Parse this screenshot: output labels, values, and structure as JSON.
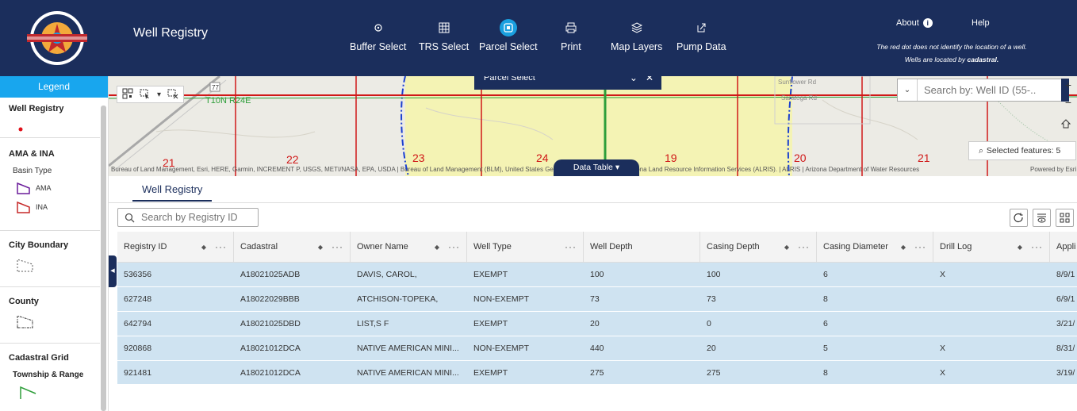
{
  "header": {
    "title": "Well Registry",
    "tools": [
      {
        "label": "Buffer Select",
        "icon": "target-icon"
      },
      {
        "label": "TRS Select",
        "icon": "grid-icon"
      },
      {
        "label": "Parcel Select",
        "icon": "parcel-icon",
        "active": true
      },
      {
        "label": "Print",
        "icon": "printer-icon"
      },
      {
        "label": "Map Layers",
        "icon": "layers-icon"
      },
      {
        "label": "Pump Data",
        "icon": "export-icon"
      }
    ],
    "about": "About",
    "help": "Help",
    "note_line1": "The red dot does not identify the location of a well.",
    "note_line2_prefix": "Wells are located by ",
    "note_line2_bold": "cadastral."
  },
  "legend": {
    "header": "Legend",
    "sections": {
      "well_registry": "Well Registry",
      "ama_ina": "AMA & INA",
      "basin_type": "Basin Type",
      "ama": "AMA",
      "ina": "INA",
      "city_boundary": "City Boundary",
      "county": "County",
      "cadastral_grid": "Cadastral Grid",
      "township_range": "Township & Range"
    }
  },
  "map": {
    "parcel_panel_title": "Parcel Select",
    "search_placeholder": "Search by: Well ID (55-...",
    "selected_features": "Selected features: 5",
    "data_table_label": "Data Table",
    "attribution": "Bureau of Land Management, Esri, HERE, Garmin, INCREMENT P, USGS, METI/NASA, EPA, USDA | Bureau of Land Management (BLM), United States Geological Survey (USGS) | Arizona Land Resource Information Services (ALRIS). | ALRIS | Arizona Department of Water Resources",
    "powered_by": "Powered by Esri",
    "section_labels": [
      "21",
      "22",
      "23",
      "24",
      "19",
      "20",
      "21"
    ],
    "township_label": "T10N R24E",
    "route_label": "77",
    "road_label_1": "Sunflower Rd",
    "road_label_2": "Saratoga Rd"
  },
  "table": {
    "tab": "Well Registry",
    "search_placeholder": "Search by Registry ID",
    "columns": [
      "Registry ID",
      "Cadastral",
      "Owner Name",
      "Well Type",
      "Well Depth",
      "Casing Depth",
      "Casing Diameter",
      "Drill Log",
      "Appli"
    ],
    "rows": [
      [
        "536356",
        "A18021025ADB",
        "DAVIS, CAROL,",
        "EXEMPT",
        "100",
        "100",
        "6",
        "X",
        "8/9/1"
      ],
      [
        "627248",
        "A18022029BBB",
        "ATCHISON-TOPEKA,",
        "NON-EXEMPT",
        "73",
        "73",
        "8",
        "",
        "6/9/1"
      ],
      [
        "642794",
        "A18021025DBD",
        "LIST,S F",
        "EXEMPT",
        "20",
        "0",
        "6",
        "",
        "3/21/"
      ],
      [
        "920868",
        "A18021012DCA",
        "NATIVE AMERICAN MINI...",
        "NON-EXEMPT",
        "440",
        "20",
        "5",
        "X",
        "8/31/"
      ],
      [
        "921481",
        "A18021012DCA",
        "NATIVE AMERICAN MINI...",
        "EXEMPT",
        "275",
        "275",
        "8",
        "X",
        "3/19/"
      ]
    ]
  }
}
